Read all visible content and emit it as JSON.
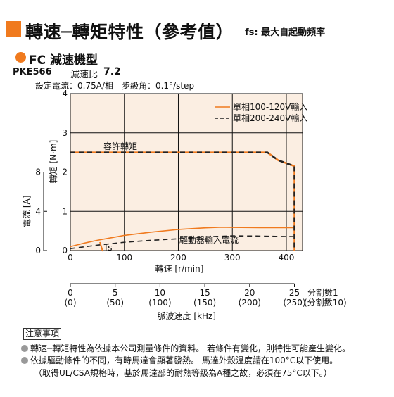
{
  "title": {
    "main": "轉速─轉矩特性（參考值）",
    "note": "fs: 最大自起動頻率"
  },
  "section": "FC 減速機型",
  "model": {
    "name": "PKE566",
    "ratio_label": "減速比",
    "ratio_value": "7.2"
  },
  "settings": "設定電流：0.75A/相　步級角：0.1°/step",
  "chart_data": {
    "type": "line",
    "xlabel": "轉速 [r/min]",
    "ylabel_left_torque": "轉矩 [N·m]",
    "ylabel_left_current": "電流 [A]",
    "xlim": [
      0,
      430
    ],
    "ylim_torque": [
      0,
      4
    ],
    "ylim_current": [
      0,
      8
    ],
    "x_ticks": [
      "0",
      "100",
      "200",
      "300",
      "400"
    ],
    "torque_ticks": [
      "0",
      "1",
      "2",
      "3",
      "4"
    ],
    "current_ticks": [
      "0",
      "4",
      "8"
    ],
    "grid": true,
    "legend": {
      "placement": "top-right"
    },
    "series": [
      {
        "name": "單相100-120V輸入",
        "kind": "current",
        "color": "#f07a1e",
        "style": "solid",
        "points": [
          [
            0,
            0.4
          ],
          [
            25,
            0.75
          ],
          [
            50,
            1.05
          ],
          [
            80,
            1.35
          ],
          [
            100,
            1.55
          ],
          [
            150,
            1.88
          ],
          [
            200,
            2.15
          ],
          [
            250,
            2.32
          ],
          [
            280,
            2.38
          ],
          [
            300,
            2.36
          ],
          [
            350,
            2.34
          ],
          [
            380,
            2.34
          ],
          [
            400,
            2.34
          ],
          [
            415,
            2.34
          ]
        ]
      },
      {
        "name": "單相200-240V輸入",
        "kind": "current",
        "color": "#222222",
        "style": "dashed",
        "points": [
          [
            0,
            0.2
          ],
          [
            50,
            0.55
          ],
          [
            100,
            0.85
          ],
          [
            150,
            1.05
          ],
          [
            200,
            1.2
          ],
          [
            250,
            1.4
          ],
          [
            300,
            1.5
          ],
          [
            350,
            1.48
          ],
          [
            380,
            1.45
          ],
          [
            415,
            1.42
          ]
        ]
      },
      {
        "name": "單相100-120V輸入",
        "kind": "torque",
        "color": "#f07a1e",
        "style": "solid",
        "points": [
          [
            0,
            2.5
          ],
          [
            365,
            2.5
          ],
          [
            385,
            2.3
          ],
          [
            415,
            2.15
          ],
          [
            415,
            0
          ]
        ]
      },
      {
        "name": "單相200-240V輸入",
        "kind": "torque",
        "color": "#222222",
        "style": "dashed",
        "points": [
          [
            0,
            2.5
          ],
          [
            365,
            2.5
          ],
          [
            385,
            2.3
          ],
          [
            415,
            2.15
          ],
          [
            415,
            0
          ]
        ]
      }
    ],
    "annotations": {
      "torque_curve": "容許轉矩",
      "current_curve": "驅動器輸入電流",
      "fs": "fs"
    },
    "pulse_axis": {
      "ticks": [
        {
          "value": "0",
          "sub": "(0)"
        },
        {
          "value": "5",
          "sub": "(50)"
        },
        {
          "value": "10",
          "sub": "(100)"
        },
        {
          "value": "15",
          "sub": "(150)"
        },
        {
          "value": "20",
          "sub": "(200)"
        },
        {
          "value": "25",
          "sub": "(250)"
        }
      ],
      "label_main": "分割數1",
      "label_sub": "(分割數10)",
      "axis_label": "脈波速度 [kHz]"
    },
    "colors": {
      "plot_bg": "#fbeee2",
      "accent": "#f07a1e"
    }
  },
  "notes": {
    "label": "注意事項",
    "items": [
      "轉速─轉矩特性為依據本公司測量條件的資料。 若條件有變化，則特性可能產生變化。",
      "依據驅動條件的不同，有時馬達會顯著發熱。 馬達外殼溫度請在100°C以下使用。"
    ],
    "continuation": "（取得UL/CSA規格時，基於馬達部的耐熱等級為A種之故，必須在75°C以下。）"
  }
}
